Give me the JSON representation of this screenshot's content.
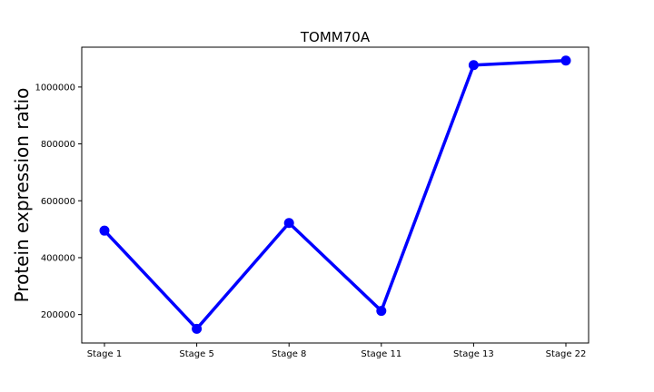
{
  "chart_data": {
    "type": "line",
    "title": "TOMM70A",
    "xlabel": "",
    "ylabel": "Protein expression ratio",
    "categories": [
      "Stage 1",
      "Stage 5",
      "Stage 8",
      "Stage 11",
      "Stage 13",
      "Stage 22"
    ],
    "series": [
      {
        "values": [
          495000,
          150000,
          522000,
          213000,
          1077000,
          1093000
        ]
      }
    ],
    "yticks": [
      200000,
      400000,
      600000,
      800000,
      1000000
    ],
    "ytick_labels": [
      "200000",
      "400000",
      "600000",
      "800000",
      "1000000"
    ],
    "ylim": [
      100000,
      1140000
    ],
    "grid": false,
    "line_color": "#0000ff"
  }
}
